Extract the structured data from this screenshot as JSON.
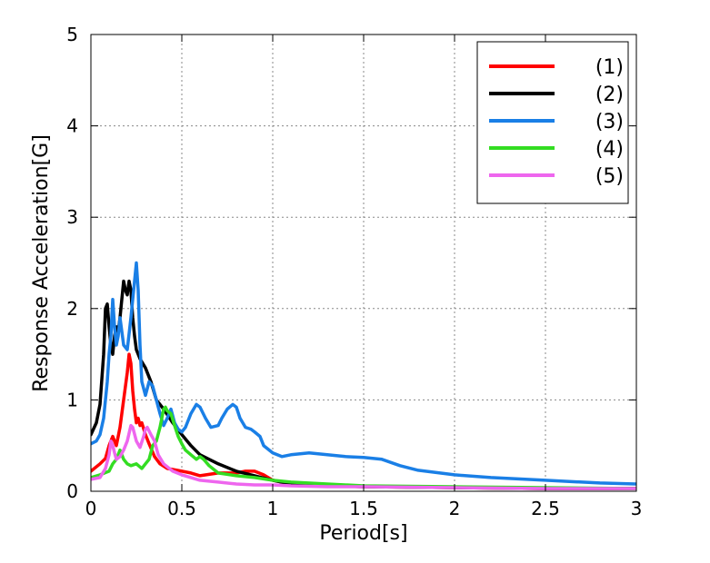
{
  "chart_data": {
    "type": "line",
    "title": "",
    "xlabel": "Period[s]",
    "ylabel": "Response Acceleration[G]",
    "xlim": [
      0,
      3
    ],
    "ylim": [
      0,
      5
    ],
    "x_ticks": [
      "0",
      "0.5",
      "1",
      "1.5",
      "2",
      "2.5",
      "3"
    ],
    "y_ticks": [
      "0",
      "1",
      "2",
      "3",
      "4",
      "5"
    ],
    "grid": true,
    "legend_position": "top-right",
    "series": [
      {
        "name": "(1)",
        "color": "#ff0000",
        "x": [
          0,
          0.05,
          0.08,
          0.1,
          0.12,
          0.14,
          0.16,
          0.18,
          0.2,
          0.21,
          0.22,
          0.23,
          0.24,
          0.25,
          0.26,
          0.27,
          0.28,
          0.3,
          0.32,
          0.35,
          0.38,
          0.42,
          0.5,
          0.55,
          0.6,
          0.7,
          0.8,
          0.85,
          0.9,
          0.95,
          1.0,
          1.1,
          1.3,
          1.5,
          2.0,
          2.5,
          3.0
        ],
        "y": [
          0.22,
          0.3,
          0.36,
          0.5,
          0.6,
          0.5,
          0.7,
          1.0,
          1.3,
          1.5,
          1.4,
          1.1,
          0.9,
          0.75,
          0.8,
          0.72,
          0.75,
          0.62,
          0.52,
          0.38,
          0.3,
          0.25,
          0.22,
          0.2,
          0.17,
          0.2,
          0.2,
          0.22,
          0.22,
          0.18,
          0.12,
          0.08,
          0.06,
          0.05,
          0.04,
          0.03,
          0.03
        ]
      },
      {
        "name": "(2)",
        "color": "#000000",
        "x": [
          0,
          0.03,
          0.05,
          0.07,
          0.08,
          0.09,
          0.1,
          0.11,
          0.12,
          0.13,
          0.14,
          0.15,
          0.16,
          0.17,
          0.18,
          0.19,
          0.2,
          0.21,
          0.22,
          0.23,
          0.24,
          0.25,
          0.27,
          0.3,
          0.33,
          0.36,
          0.4,
          0.45,
          0.5,
          0.55,
          0.6,
          0.7,
          0.8,
          0.9,
          1.0,
          1.1,
          1.3,
          1.5,
          2.0,
          2.5,
          3.0
        ],
        "y": [
          0.62,
          0.75,
          0.95,
          1.5,
          2.0,
          2.05,
          1.8,
          1.6,
          1.5,
          1.7,
          1.8,
          1.75,
          1.9,
          2.1,
          2.3,
          2.2,
          2.15,
          2.3,
          2.2,
          1.9,
          1.7,
          1.55,
          1.45,
          1.35,
          1.2,
          1.0,
          0.9,
          0.75,
          0.62,
          0.5,
          0.4,
          0.3,
          0.22,
          0.17,
          0.12,
          0.08,
          0.06,
          0.05,
          0.04,
          0.03,
          0.03
        ]
      },
      {
        "name": "(3)",
        "color": "#1a7fe6",
        "x": [
          0,
          0.03,
          0.05,
          0.07,
          0.09,
          0.1,
          0.11,
          0.12,
          0.13,
          0.14,
          0.15,
          0.16,
          0.18,
          0.2,
          0.22,
          0.24,
          0.25,
          0.26,
          0.27,
          0.28,
          0.3,
          0.32,
          0.34,
          0.36,
          0.38,
          0.4,
          0.42,
          0.44,
          0.46,
          0.48,
          0.5,
          0.52,
          0.55,
          0.58,
          0.6,
          0.63,
          0.66,
          0.7,
          0.72,
          0.75,
          0.78,
          0.8,
          0.82,
          0.85,
          0.88,
          0.9,
          0.93,
          0.95,
          1.0,
          1.05,
          1.1,
          1.2,
          1.3,
          1.4,
          1.5,
          1.6,
          1.7,
          1.8,
          2.0,
          2.2,
          2.5,
          2.8,
          3.0
        ],
        "y": [
          0.52,
          0.55,
          0.62,
          0.8,
          1.2,
          1.5,
          1.7,
          2.1,
          1.8,
          1.6,
          1.7,
          1.9,
          1.6,
          1.55,
          1.9,
          2.3,
          2.5,
          2.2,
          1.6,
          1.2,
          1.05,
          1.2,
          1.15,
          1.0,
          0.85,
          0.72,
          0.8,
          0.9,
          0.75,
          0.68,
          0.65,
          0.7,
          0.85,
          0.95,
          0.92,
          0.8,
          0.7,
          0.72,
          0.8,
          0.9,
          0.95,
          0.92,
          0.8,
          0.7,
          0.68,
          0.65,
          0.6,
          0.5,
          0.42,
          0.38,
          0.4,
          0.42,
          0.4,
          0.38,
          0.37,
          0.35,
          0.28,
          0.23,
          0.18,
          0.15,
          0.12,
          0.09,
          0.08
        ]
      },
      {
        "name": "(4)",
        "color": "#33dd22",
        "x": [
          0,
          0.05,
          0.1,
          0.12,
          0.14,
          0.16,
          0.18,
          0.2,
          0.22,
          0.25,
          0.28,
          0.3,
          0.32,
          0.34,
          0.36,
          0.38,
          0.4,
          0.41,
          0.42,
          0.44,
          0.46,
          0.48,
          0.5,
          0.52,
          0.55,
          0.58,
          0.6,
          0.62,
          0.65,
          0.7,
          0.8,
          0.9,
          1.0,
          1.1,
          1.3,
          1.5,
          2.0,
          2.5,
          3.0
        ],
        "y": [
          0.15,
          0.18,
          0.22,
          0.3,
          0.35,
          0.45,
          0.35,
          0.3,
          0.28,
          0.3,
          0.25,
          0.3,
          0.35,
          0.5,
          0.55,
          0.7,
          0.9,
          0.92,
          0.88,
          0.85,
          0.72,
          0.6,
          0.52,
          0.45,
          0.4,
          0.35,
          0.38,
          0.35,
          0.28,
          0.2,
          0.17,
          0.15,
          0.12,
          0.1,
          0.08,
          0.06,
          0.05,
          0.04,
          0.03
        ]
      },
      {
        "name": "(5)",
        "color": "#ee66ee",
        "x": [
          0,
          0.05,
          0.08,
          0.1,
          0.11,
          0.12,
          0.13,
          0.14,
          0.16,
          0.18,
          0.2,
          0.22,
          0.23,
          0.25,
          0.27,
          0.29,
          0.3,
          0.31,
          0.33,
          0.35,
          0.37,
          0.4,
          0.45,
          0.5,
          0.6,
          0.7,
          0.8,
          0.9,
          1.0,
          1.1,
          1.3,
          1.5,
          2.0,
          2.5,
          3.0
        ],
        "y": [
          0.13,
          0.15,
          0.25,
          0.4,
          0.55,
          0.5,
          0.42,
          0.35,
          0.38,
          0.45,
          0.55,
          0.72,
          0.7,
          0.55,
          0.48,
          0.6,
          0.68,
          0.7,
          0.62,
          0.55,
          0.4,
          0.3,
          0.22,
          0.18,
          0.12,
          0.1,
          0.08,
          0.07,
          0.07,
          0.06,
          0.05,
          0.05,
          0.04,
          0.03,
          0.03
        ]
      }
    ]
  }
}
